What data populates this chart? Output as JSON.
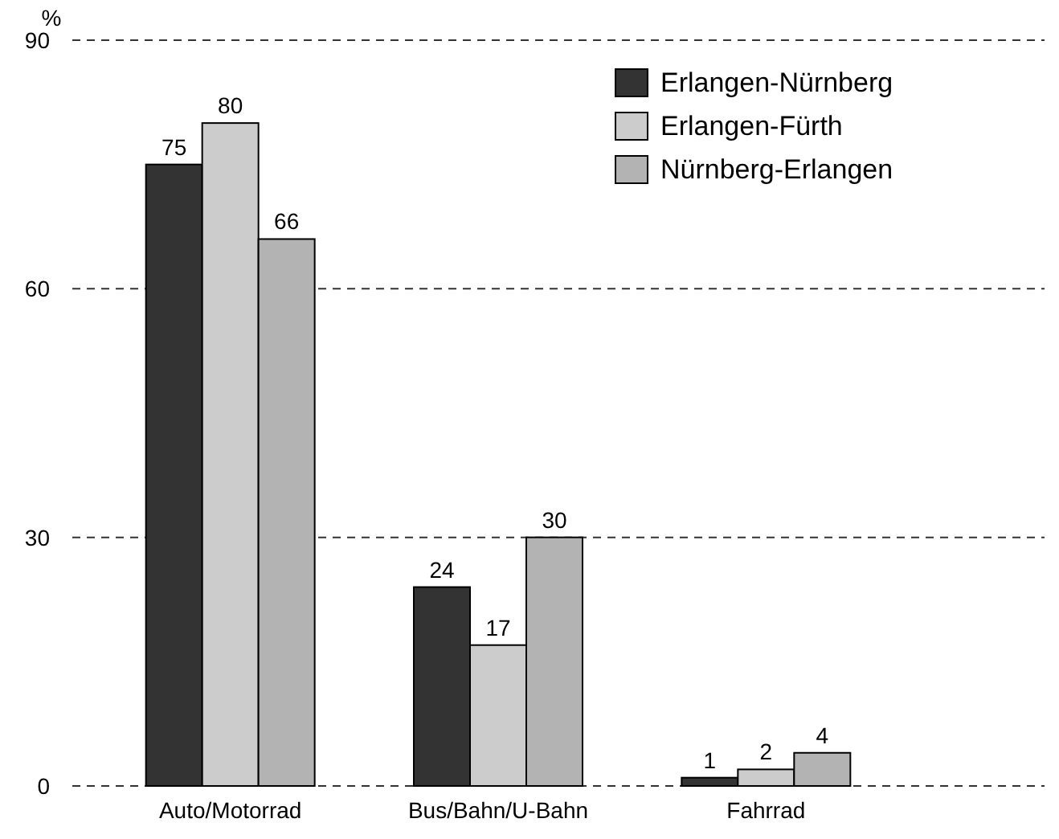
{
  "chart_data": {
    "type": "bar",
    "ylabel": "%",
    "categories": [
      "Auto/Motorrad",
      "Bus/Bahn/U-Bahn",
      "Fahrrad"
    ],
    "series": [
      {
        "name": "Erlangen-Nürnberg",
        "color": "#333333",
        "values": [
          75,
          24,
          1
        ]
      },
      {
        "name": "Erlangen-Fürth",
        "color": "#cccccc",
        "values": [
          80,
          17,
          2
        ]
      },
      {
        "name": "Nürnberg-Erlangen",
        "color": "#b3b3b3",
        "values": [
          66,
          30,
          4
        ]
      }
    ],
    "ylim": [
      0,
      90
    ],
    "yticks": [
      0,
      30,
      60,
      90
    ],
    "grid": "y",
    "legend": "top right",
    "data_labels": true
  }
}
